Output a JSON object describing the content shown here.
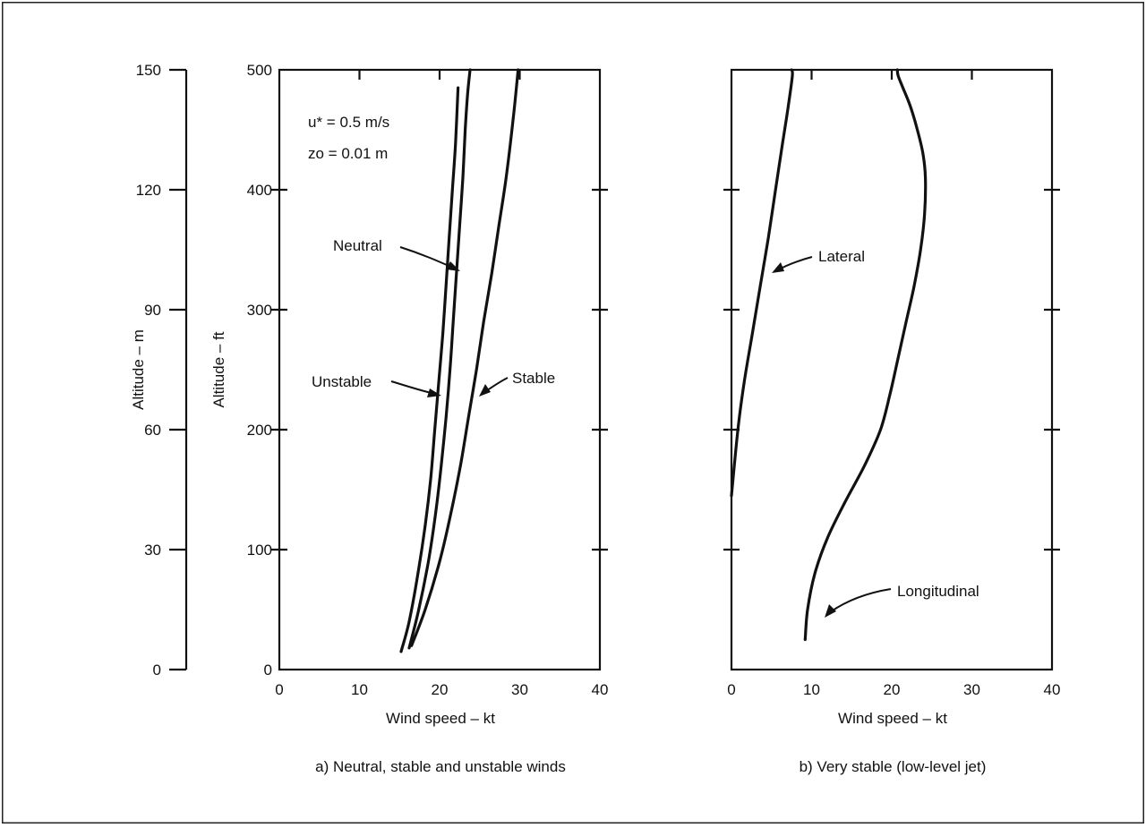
{
  "chart_data": [
    {
      "type": "line",
      "caption": "a) Neutral, stable and unstable winds",
      "xlabel": "Wind speed – kt",
      "ylabel": "Altitude – ft",
      "ylabel_secondary": "Altitude – m",
      "xlim": [
        0,
        40
      ],
      "ylim": [
        0,
        500
      ],
      "ylim_secondary": [
        0,
        150
      ],
      "xticks": [
        "0",
        "10",
        "20",
        "30",
        "40"
      ],
      "yticks": [
        "0",
        "100",
        "200",
        "300",
        "400",
        "500"
      ],
      "yticks_secondary": [
        "0",
        "30",
        "60",
        "90",
        "120",
        "150"
      ],
      "grid": false,
      "parameters": [
        "u* = 0.5 m/s",
        "zo = 0.01 m"
      ],
      "series": [
        {
          "name": "Unstable",
          "x": [
            15.2,
            16.2,
            17.3,
            18.2,
            18.9,
            19.4,
            19.9,
            20.4,
            20.8,
            21.2,
            21.6,
            22.0,
            22.3
          ],
          "y": [
            15,
            40,
            80,
            120,
            160,
            200,
            240,
            280,
            320,
            360,
            400,
            440,
            485
          ]
        },
        {
          "name": "Neutral",
          "x": [
            16.2,
            17.4,
            18.6,
            19.5,
            20.2,
            20.8,
            21.3,
            21.7,
            22.1,
            22.5,
            22.9,
            23.2,
            23.5,
            23.8
          ],
          "y": [
            18,
            50,
            90,
            130,
            170,
            210,
            250,
            290,
            330,
            370,
            410,
            450,
            480,
            500
          ]
        },
        {
          "name": "Stable",
          "x": [
            16.5,
            18.2,
            20.0,
            21.4,
            22.6,
            23.6,
            24.6,
            25.5,
            26.5,
            27.4,
            28.3,
            29.2,
            29.8
          ],
          "y": [
            20,
            50,
            90,
            130,
            170,
            210,
            250,
            290,
            330,
            370,
            410,
            460,
            500
          ]
        }
      ]
    },
    {
      "type": "line",
      "caption": "b) Very stable (low-level jet)",
      "xlabel": "Wind speed – kt",
      "xlim": [
        0,
        40
      ],
      "ylim": [
        0,
        500
      ],
      "xticks": [
        "0",
        "10",
        "20",
        "30",
        "40"
      ],
      "grid": false,
      "series": [
        {
          "name": "Lateral",
          "x": [
            0.0,
            0.8,
            1.6,
            2.6,
            3.6,
            4.6,
            5.5,
            6.4,
            7.1,
            7.6,
            7.5
          ],
          "y": [
            145,
            200,
            240,
            280,
            320,
            360,
            400,
            440,
            470,
            495,
            500
          ]
        },
        {
          "name": "Longitudinal",
          "x": [
            9.2,
            9.5,
            10.4,
            12.0,
            14.2,
            16.6,
            18.6,
            19.8,
            20.8,
            21.8,
            22.8,
            23.6,
            24.1,
            24.2,
            23.9,
            23.2,
            22.3,
            21.4,
            20.8,
            20.7
          ],
          "y": [
            25,
            50,
            80,
            110,
            140,
            170,
            200,
            230,
            260,
            290,
            320,
            350,
            380,
            410,
            430,
            450,
            470,
            485,
            495,
            500
          ]
        }
      ]
    }
  ]
}
